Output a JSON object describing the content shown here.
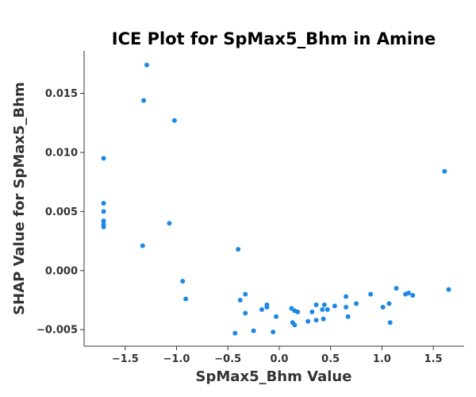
{
  "chart_data": {
    "type": "scatter",
    "title": "ICE Plot for SpMax5_Bhm in Amine",
    "xlabel": "SpMax5_Bhm Value",
    "ylabel": "SHAP Value for SpMax5_Bhm",
    "xlim": [
      -1.9,
      1.8
    ],
    "ylim": [
      -0.0064,
      0.0186
    ],
    "x_ticks": [
      -1.5,
      -1.0,
      -0.5,
      0.0,
      0.5,
      1.0,
      1.5
    ],
    "x_tick_labels": [
      "−1.5",
      "−1.0",
      "−0.5",
      "0.0",
      "0.5",
      "1.0",
      "1.5"
    ],
    "y_ticks": [
      -0.005,
      0.0,
      0.005,
      0.01,
      0.015
    ],
    "y_tick_labels": [
      "−0.005",
      "0.000",
      "0.005",
      "0.010",
      "0.015"
    ],
    "grid": false,
    "point_color": "#1e88e5",
    "points": [
      {
        "x": -1.71,
        "y": 0.0095
      },
      {
        "x": -1.71,
        "y": 0.0057
      },
      {
        "x": -1.71,
        "y": 0.005
      },
      {
        "x": -1.71,
        "y": 0.0042
      },
      {
        "x": -1.71,
        "y": 0.0039
      },
      {
        "x": -1.71,
        "y": 0.0037
      },
      {
        "x": -1.29,
        "y": 0.0174
      },
      {
        "x": -1.32,
        "y": 0.0144
      },
      {
        "x": -1.33,
        "y": 0.0021
      },
      {
        "x": -1.02,
        "y": 0.0127
      },
      {
        "x": -1.07,
        "y": 0.004
      },
      {
        "x": -0.94,
        "y": -0.0009
      },
      {
        "x": -0.91,
        "y": -0.0024
      },
      {
        "x": -0.4,
        "y": 0.0018
      },
      {
        "x": -0.38,
        "y": -0.0025
      },
      {
        "x": -0.33,
        "y": -0.002
      },
      {
        "x": -0.33,
        "y": -0.0036
      },
      {
        "x": -0.43,
        "y": -0.0053
      },
      {
        "x": -0.25,
        "y": -0.0051
      },
      {
        "x": -0.17,
        "y": -0.0033
      },
      {
        "x": -0.12,
        "y": -0.0031
      },
      {
        "x": -0.12,
        "y": -0.0029
      },
      {
        "x": -0.03,
        "y": -0.0039
      },
      {
        "x": -0.06,
        "y": -0.0052
      },
      {
        "x": 0.12,
        "y": -0.0032
      },
      {
        "x": 0.15,
        "y": -0.0034
      },
      {
        "x": 0.18,
        "y": -0.0035
      },
      {
        "x": 0.13,
        "y": -0.0044
      },
      {
        "x": 0.15,
        "y": -0.0046
      },
      {
        "x": 0.28,
        "y": -0.0043
      },
      {
        "x": 0.32,
        "y": -0.0035
      },
      {
        "x": 0.36,
        "y": -0.0029
      },
      {
        "x": 0.36,
        "y": -0.0042
      },
      {
        "x": 0.42,
        "y": -0.0033
      },
      {
        "x": 0.44,
        "y": -0.0029
      },
      {
        "x": 0.47,
        "y": -0.0033
      },
      {
        "x": 0.43,
        "y": -0.0041
      },
      {
        "x": 0.54,
        "y": -0.003
      },
      {
        "x": 0.65,
        "y": -0.0022
      },
      {
        "x": 0.65,
        "y": -0.0031
      },
      {
        "x": 0.67,
        "y": -0.0039
      },
      {
        "x": 0.75,
        "y": -0.0028
      },
      {
        "x": 0.89,
        "y": -0.002
      },
      {
        "x": 1.01,
        "y": -0.0031
      },
      {
        "x": 1.07,
        "y": -0.0028
      },
      {
        "x": 1.08,
        "y": -0.0044
      },
      {
        "x": 1.14,
        "y": -0.0015
      },
      {
        "x": 1.23,
        "y": -0.002
      },
      {
        "x": 1.26,
        "y": -0.0019
      },
      {
        "x": 1.3,
        "y": -0.0021
      },
      {
        "x": 1.61,
        "y": 0.0084
      },
      {
        "x": 1.65,
        "y": -0.0016
      }
    ]
  }
}
